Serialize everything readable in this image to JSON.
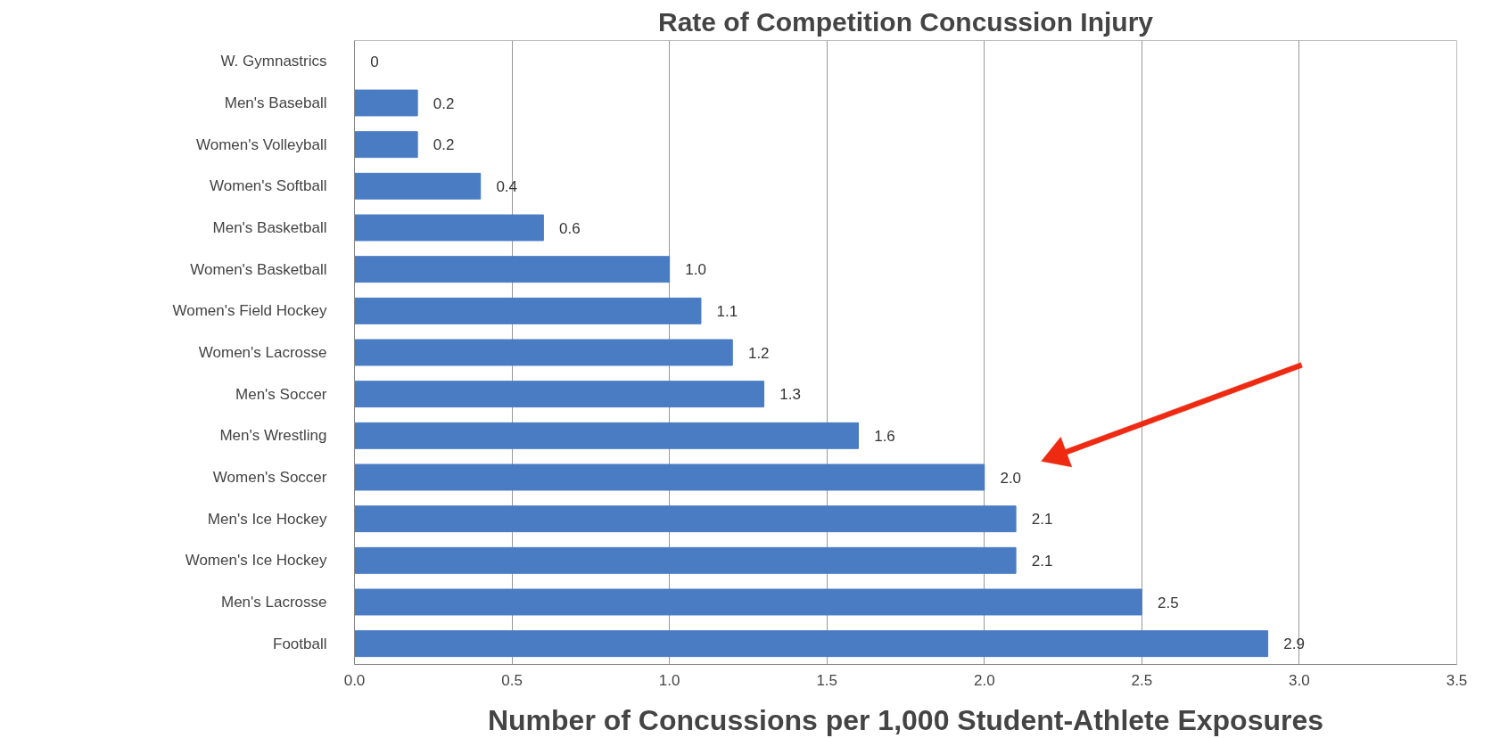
{
  "chart_data": {
    "type": "bar",
    "orientation": "horizontal",
    "title": "Rate of Competition Concussion Injury",
    "xlabel": "Number of Concussions per 1,000 Student-Athlete Exposures",
    "categories": [
      "W. Gymnastrics",
      "Men's Baseball",
      "Women's Volleyball",
      "Women's Softball",
      "Men's Basketball",
      "Women's Basketball",
      "Women's Field Hockey",
      "Women's Lacrosse",
      "Men's Soccer",
      "Men's Wrestling",
      "Women's Soccer",
      "Men's Ice Hockey",
      "Women's Ice Hockey",
      "Men's Lacrosse",
      "Football"
    ],
    "values": [
      0,
      0.2,
      0.2,
      0.4,
      0.6,
      1.0,
      1.1,
      1.2,
      1.3,
      1.6,
      2.0,
      2.1,
      2.1,
      2.5,
      2.9
    ],
    "value_labels": [
      "0",
      "0.2",
      "0.2",
      "0.4",
      "0.6",
      "1.0",
      "1.1",
      "1.2",
      "1.3",
      "1.6",
      "2.0",
      "2.1",
      "2.1",
      "2.5",
      "2.9"
    ],
    "color": "#4a7cc4",
    "xlim": [
      0,
      3.5
    ],
    "xticks": [
      {
        "value": 0,
        "label": "0.0"
      },
      {
        "value": 0.5,
        "label": "0.5"
      },
      {
        "value": 1,
        "label": "1.0"
      },
      {
        "value": 1.5,
        "label": "1.5"
      },
      {
        "value": 2,
        "label": "2.0"
      },
      {
        "value": 2.5,
        "label": "2.5"
      },
      {
        "value": 3,
        "label": "3.0"
      },
      {
        "value": 3.5,
        "label": "3.5"
      }
    ],
    "grid": "x"
  }
}
